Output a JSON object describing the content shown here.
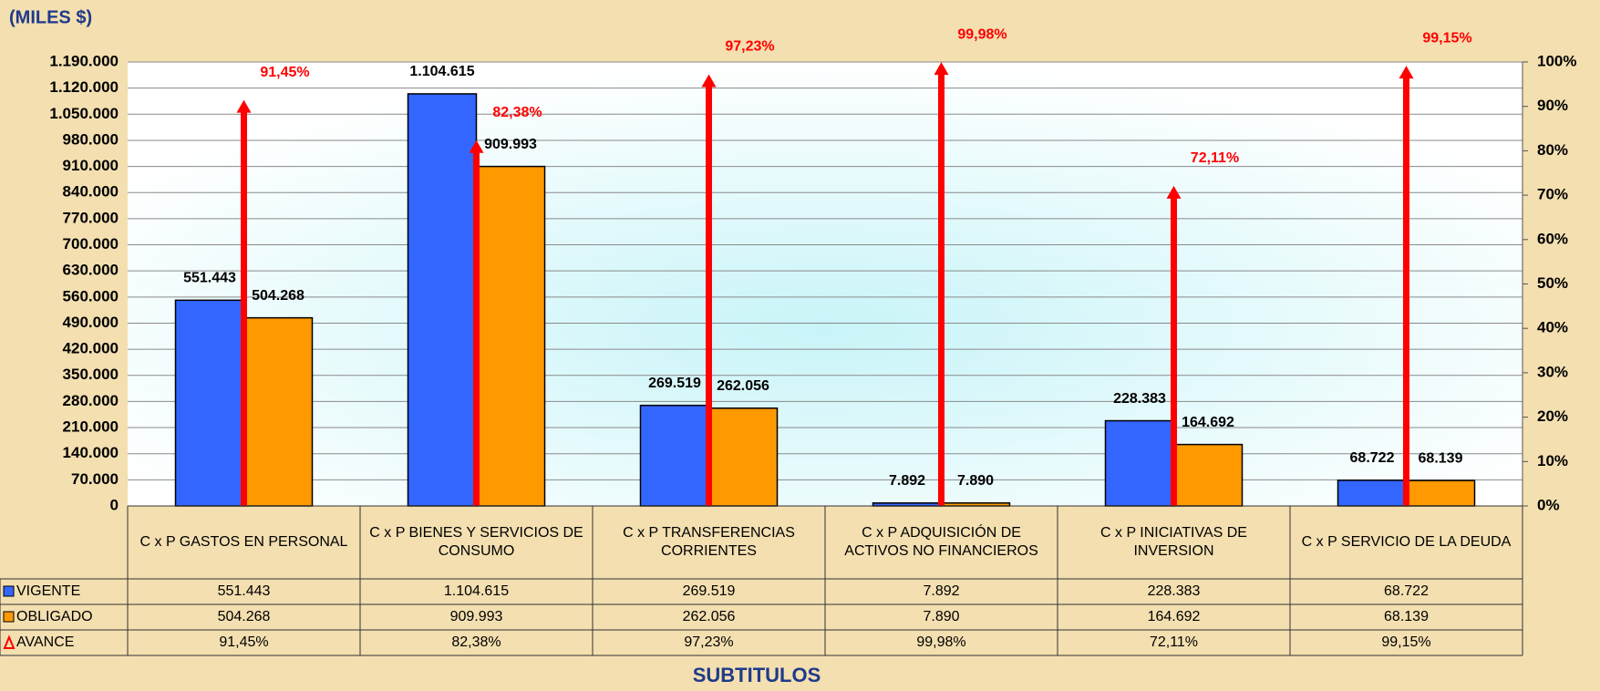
{
  "chart_data": {
    "type": "bar",
    "ylabel": "(MILES $)",
    "xlabel": "SUBTITULOS",
    "categories": [
      "C x P GASTOS EN PERSONAL",
      "C x P BIENES Y SERVICIOS DE CONSUMO",
      "C x P TRANSFERENCIAS CORRIENTES",
      "C x P ADQUISICIÓN DE ACTIVOS NO FINANCIEROS",
      "C x P INICIATIVAS DE INVERSION",
      "C x P SERVICIO DE LA DEUDA"
    ],
    "series": [
      {
        "name": "VIGENTE",
        "color": "#3366ff",
        "values": [
          551443,
          1104615,
          269519,
          7892,
          228383,
          68722
        ],
        "value_labels": [
          "551.443",
          "1.104.615",
          "269.519",
          "7.892",
          "228.383",
          "68.722"
        ]
      },
      {
        "name": "OBLIGADO",
        "color": "#ff9900",
        "values": [
          504268,
          909993,
          262056,
          7890,
          164692,
          68139
        ],
        "value_labels": [
          "504.268",
          "909.993",
          "262.056",
          "7.890",
          "164.692",
          "68.139"
        ]
      },
      {
        "name": "AVANCE",
        "color": "#ff0000",
        "axis": "y2",
        "values": [
          91.45,
          82.38,
          97.23,
          99.98,
          72.11,
          99.15
        ],
        "value_labels": [
          "91,45%",
          "82,38%",
          "97,23%",
          "99,98%",
          "72,11%",
          "99,15%"
        ]
      }
    ],
    "ylim": [
      0,
      1190000
    ],
    "yticks": [
      0,
      {
        "value": 70000,
        "label": "70.000"
      },
      {
        "value": 140000,
        "label": "140.000"
      },
      {
        "value": 210000,
        "label": "210.000"
      },
      {
        "value": 280000,
        "label": "280.000"
      },
      {
        "value": 350000,
        "label": "350.000"
      },
      {
        "value": 420000,
        "label": "420.000"
      },
      {
        "value": 490000,
        "label": "490.000"
      },
      {
        "value": 560000,
        "label": "560.000"
      },
      {
        "value": 630000,
        "label": "630.000"
      },
      {
        "value": 700000,
        "label": "700.000"
      },
      {
        "value": 770000,
        "label": "770.000"
      },
      {
        "value": 840000,
        "label": "840.000"
      },
      {
        "value": 910000,
        "label": "910.000"
      },
      {
        "value": 980000,
        "label": "980.000"
      },
      {
        "value": 1050000,
        "label": "1.050.000"
      },
      {
        "value": 1120000,
        "label": "1.120.000"
      },
      {
        "value": 1190000,
        "label": "1.190.000"
      }
    ],
    "y2lim": [
      0,
      100
    ],
    "y2ticks": [
      {
        "value": 0,
        "label": "0%"
      },
      {
        "value": 10,
        "label": "10%"
      },
      {
        "value": 20,
        "label": "20%"
      },
      {
        "value": 30,
        "label": "30%"
      },
      {
        "value": 40,
        "label": "40%"
      },
      {
        "value": 50,
        "label": "50%"
      },
      {
        "value": 60,
        "label": "60%"
      },
      {
        "value": 70,
        "label": "70%"
      },
      {
        "value": 80,
        "label": "80%"
      },
      {
        "value": 90,
        "label": "90%"
      },
      {
        "value": 100,
        "label": "100%"
      }
    ],
    "grid": true
  }
}
